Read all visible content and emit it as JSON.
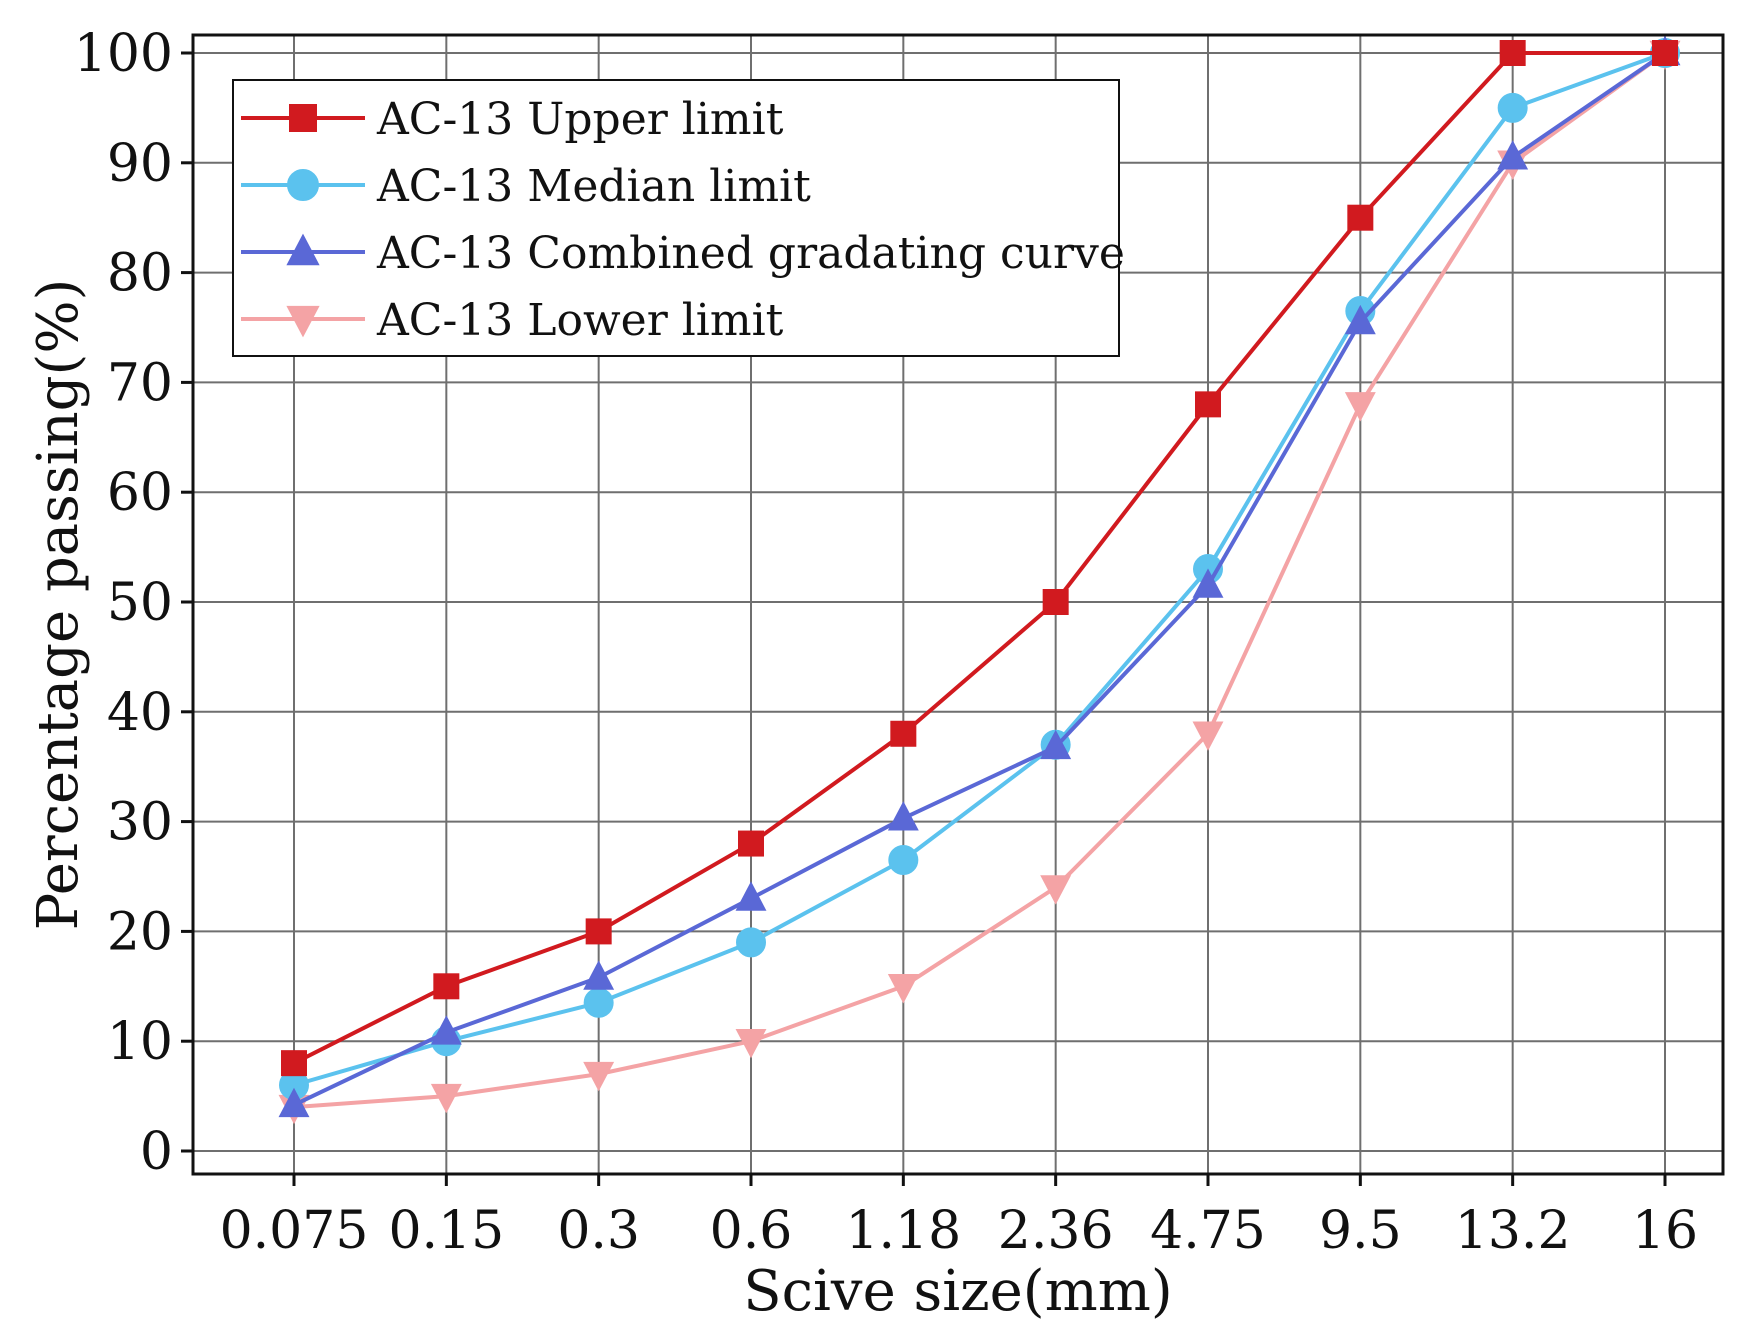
{
  "chart_data": {
    "type": "line",
    "title": "",
    "xlabel": "Scive size(mm)",
    "ylabel": "Percentage passing(%)",
    "categories": [
      "0.075",
      "0.15",
      "0.3",
      "0.6",
      "1.18",
      "2.36",
      "4.75",
      "9.5",
      "13.2",
      "16"
    ],
    "ylim": [
      0,
      100
    ],
    "yticks": [
      0,
      10,
      20,
      30,
      40,
      50,
      60,
      70,
      80,
      90,
      100
    ],
    "grid": true,
    "legend_position": "top-left",
    "series": [
      {
        "name": "AC-13 Upper limit",
        "color": "#d11a1f",
        "marker": "square",
        "values": [
          8,
          15,
          20,
          28,
          38,
          50,
          68,
          85,
          100,
          100
        ]
      },
      {
        "name": "AC-13 Median limit",
        "color": "#5bc2ee",
        "marker": "circle",
        "values": [
          6,
          10,
          13.5,
          19,
          26.5,
          37,
          53,
          76.5,
          95,
          100
        ]
      },
      {
        "name": "AC-13 Combined gradating curve",
        "color": "#5a68d6",
        "marker": "triangle-up",
        "values": [
          4.2,
          10.8,
          15.8,
          23,
          30.3,
          36.8,
          51.5,
          75.5,
          90.5,
          100
        ]
      },
      {
        "name": "AC-13 Lower limit",
        "color": "#f4a3a5",
        "marker": "triangle-down",
        "values": [
          4,
          5,
          7,
          10,
          15,
          24,
          38,
          68,
          90,
          100
        ]
      }
    ]
  }
}
